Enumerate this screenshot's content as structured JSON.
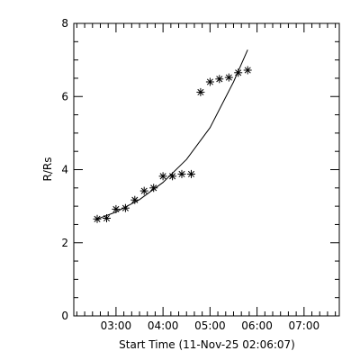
{
  "colors": {
    "background": "#ffffff",
    "ink": "#000000"
  },
  "chart_data": {
    "type": "scatter",
    "title": "",
    "xlabel": "Start Time (11-Nov-25 02:06:07)",
    "ylabel": "R/Rs",
    "xlim": [
      "02:06:07",
      "07:45:00"
    ],
    "ylim": [
      0,
      8
    ],
    "grid": false,
    "legend": "none",
    "x_ticks": [
      "03:00",
      "04:00",
      "05:00",
      "06:00",
      "07:00"
    ],
    "y_ticks": [
      "0",
      "2",
      "4",
      "6",
      "8"
    ],
    "marker": "asterisk",
    "series": [
      {
        "name": "",
        "kind": "points",
        "x": [
          "02:36",
          "02:48",
          "03:00",
          "03:12",
          "03:24",
          "03:36",
          "03:48",
          "04:00",
          "04:12",
          "04:24",
          "04:36",
          "04:48",
          "05:00",
          "05:12",
          "05:24",
          "05:36",
          "05:48"
        ],
        "y": [
          2.65,
          2.67,
          2.92,
          2.95,
          3.17,
          3.42,
          3.5,
          3.82,
          3.82,
          3.88,
          3.88,
          6.12,
          6.4,
          6.48,
          6.52,
          6.65,
          6.72
        ]
      },
      {
        "name": "",
        "kind": "fit-line",
        "x": [
          "02:36",
          "03:00",
          "03:30",
          "04:00",
          "04:30",
          "05:00",
          "05:30",
          "05:48"
        ],
        "y": [
          2.65,
          2.84,
          3.18,
          3.65,
          4.28,
          5.15,
          6.4,
          7.28
        ]
      }
    ]
  }
}
